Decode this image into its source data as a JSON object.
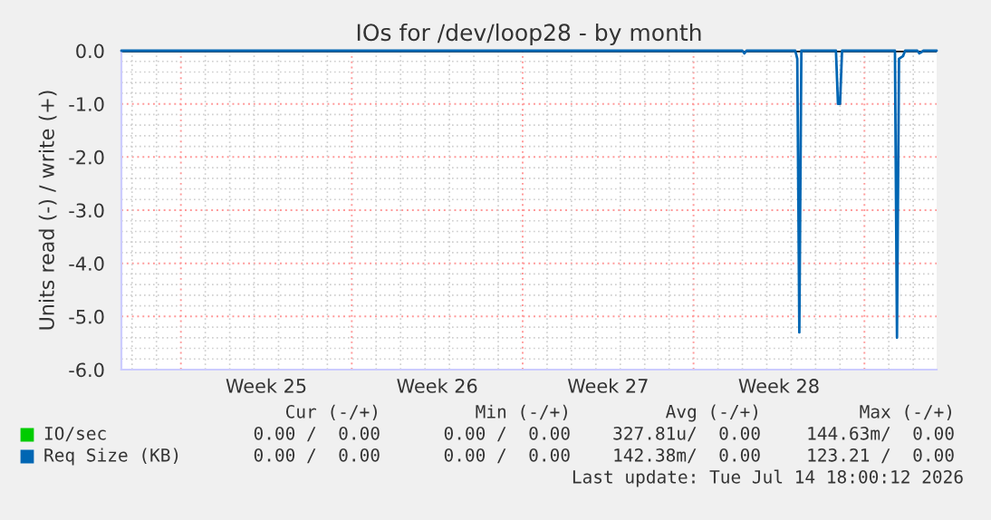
{
  "chart_data": {
    "type": "line",
    "title": "IOs for /dev/loop28 - by month",
    "ylabel": "Units read (-) / write (+)",
    "xlim": [
      "2026-06-12T13:30",
      "2026-07-15T23:00"
    ],
    "ylim": [
      -6.0,
      0.0
    ],
    "yticks": [
      {
        "value": -6.0,
        "label": "-6.0"
      },
      {
        "value": -5.0,
        "label": "-5.0"
      },
      {
        "value": -4.0,
        "label": "-4.0"
      },
      {
        "value": -3.0,
        "label": "-3.0"
      },
      {
        "value": -2.0,
        "label": "-2.0"
      },
      {
        "value": -1.0,
        "label": "-1.0"
      },
      {
        "value": 0.0,
        "label": "0.0"
      }
    ],
    "xticks": [
      {
        "value": "2026-06-15",
        "label": null
      },
      {
        "value": "2026-06-18T12:00",
        "label": "Week 25"
      },
      {
        "value": "2026-06-22",
        "label": null
      },
      {
        "value": "2026-06-25T12:00",
        "label": "Week 26"
      },
      {
        "value": "2026-06-29",
        "label": null
      },
      {
        "value": "2026-07-02T12:00",
        "label": "Week 27"
      },
      {
        "value": "2026-07-06",
        "label": null
      },
      {
        "value": "2026-07-09T12:00",
        "label": "Week 28"
      },
      {
        "value": "2026-07-13",
        "label": null
      }
    ],
    "grid": true,
    "legend": "bottom left",
    "ref_lines": [
      {
        "axis": "y",
        "value": 0.0,
        "color": "#000000"
      }
    ],
    "series": [
      {
        "name": "IO/sec",
        "color": "#00cc00"
      },
      {
        "name": "Req Size (KB)",
        "color": "#0066b3",
        "x": [
          "2026-06-12T13:30",
          "2026-07-08T00:00",
          "2026-07-08T02:00",
          "2026-07-08T04:00",
          "2026-07-10T04:00",
          "2026-07-10T06:00",
          "2026-07-10T08:00",
          "2026-07-10T10:00",
          "2026-07-11T20:00",
          "2026-07-11T22:00",
          "2026-07-12T00:00",
          "2026-07-12T02:00",
          "2026-07-14T06:00",
          "2026-07-14T08:00",
          "2026-07-14T10:00",
          "2026-07-14T14:00",
          "2026-07-14T16:00",
          "2026-07-15T04:00",
          "2026-07-15T06:00",
          "2026-07-15T10:00",
          "2026-07-15T23:00"
        ],
        "values": [
          0,
          0,
          -0.05,
          0,
          0,
          -0.15,
          -5.3,
          0,
          0,
          -1.0,
          -1.0,
          0,
          0,
          -5.4,
          -0.15,
          -0.1,
          0,
          0,
          -0.05,
          0,
          0
        ]
      }
    ],
    "annotations": [
      "Cur (-/+)",
      "Min (-/+)",
      "Avg (-/+)",
      "Max (-/+)",
      "0.00 /  0.00",
      "0.00 /  0.00",
      "327.81u/  0.00",
      "144.63m/  0.00",
      "0.00 /  0.00",
      "0.00 /  0.00",
      "142.38m/  0.00",
      "123.21 /  0.00",
      "Last update: Tue Jul 14 18:00:12 2026"
    ]
  }
}
